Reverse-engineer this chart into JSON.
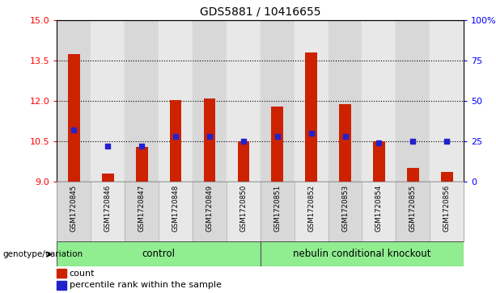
{
  "title": "GDS5881 / 10416655",
  "samples": [
    "GSM1720845",
    "GSM1720846",
    "GSM1720847",
    "GSM1720848",
    "GSM1720849",
    "GSM1720850",
    "GSM1720851",
    "GSM1720852",
    "GSM1720853",
    "GSM1720854",
    "GSM1720855",
    "GSM1720856"
  ],
  "count_values": [
    13.75,
    9.3,
    10.3,
    12.05,
    12.1,
    10.5,
    11.8,
    13.8,
    11.9,
    10.5,
    9.5,
    9.35
  ],
  "percentile_values": [
    32,
    22,
    22,
    28,
    28,
    25,
    28,
    30,
    28,
    24,
    25,
    25
  ],
  "ymin": 9,
  "ymax": 15,
  "yticks_left": [
    9,
    10.5,
    12,
    13.5,
    15
  ],
  "yticks_right": [
    0,
    25,
    50,
    75,
    100
  ],
  "bar_color": "#cc2200",
  "dot_color": "#2222cc",
  "col_bg_even": "#d8d8d8",
  "col_bg_odd": "#e8e8e8",
  "plot_bg": "#ffffff",
  "group_control_label": "control",
  "group_ko_label": "nebulin conditional knockout",
  "group_color": "#90ee90",
  "group_label": "genotype/variation",
  "legend_count_label": "count",
  "legend_percentile_label": "percentile rank within the sample",
  "grid_yticks": [
    10.5,
    12,
    13.5
  ]
}
